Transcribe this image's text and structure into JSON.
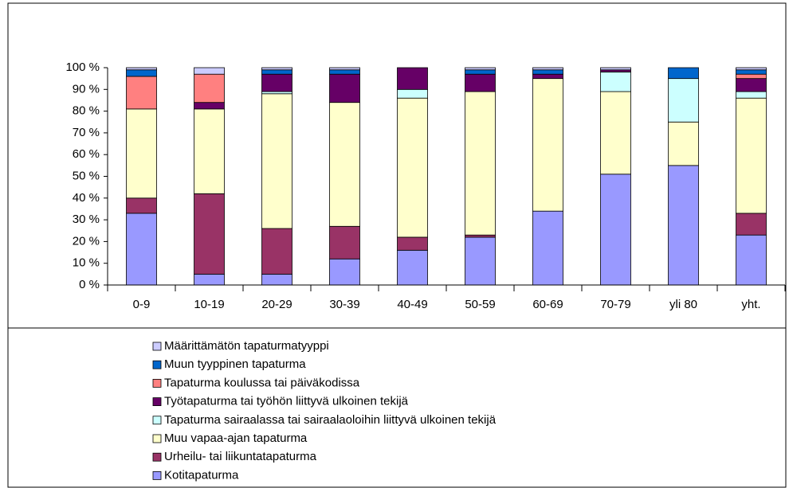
{
  "chart_data": {
    "type": "stacked_bar",
    "categories": [
      "0-9",
      "10-19",
      "20-29",
      "30-39",
      "40-49",
      "50-59",
      "60-69",
      "70-79",
      "yli 80",
      "yht."
    ],
    "series": [
      {
        "name": "Kotitapaturma",
        "color": "#9999ff",
        "values": [
          33,
          5,
          5,
          12,
          16,
          22,
          34,
          51,
          55,
          23
        ]
      },
      {
        "name": "Urheilu- tai liikuntatapaturma",
        "color": "#993366",
        "values": [
          7,
          37,
          21,
          15,
          6,
          1,
          0,
          0,
          0,
          10
        ]
      },
      {
        "name": "Muu vapaa-ajan tapaturma",
        "color": "#ffffcc",
        "values": [
          41,
          39,
          62,
          57,
          64,
          66,
          61,
          38,
          20,
          53
        ]
      },
      {
        "name": "Tapaturma sairaalassa tai sairaalaoloihin liittyvä ulkoinen tekijä",
        "color": "#ccffff",
        "values": [
          0,
          0,
          1,
          0,
          4,
          0,
          0,
          9,
          20,
          3
        ]
      },
      {
        "name": "Työtapaturma tai työhön liittyvä ulkoinen tekijä",
        "color": "#660066",
        "values": [
          0,
          3,
          8,
          13,
          10,
          8,
          2,
          1,
          0,
          6
        ]
      },
      {
        "name": "Tapaturma koulussa tai päiväkodissa",
        "color": "#ff8080",
        "values": [
          15,
          13,
          0,
          0,
          0,
          0,
          0,
          0,
          0,
          2
        ]
      },
      {
        "name": "Muun tyyppinen tapaturma",
        "color": "#0066cc",
        "values": [
          3,
          0,
          2,
          2,
          0,
          2,
          2,
          0,
          5,
          2
        ]
      },
      {
        "name": "Määrittämätön tapaturmatyyppi",
        "color": "#ccccff",
        "values": [
          1,
          3,
          1,
          1,
          0,
          1,
          1,
          1,
          0,
          1
        ]
      }
    ],
    "ylim": [
      0,
      100
    ],
    "yticks": [
      {
        "value": 0,
        "label": "0 %"
      },
      {
        "value": 10,
        "label": "10 %"
      },
      {
        "value": 20,
        "label": "20 %"
      },
      {
        "value": 30,
        "label": "30 %"
      },
      {
        "value": 40,
        "label": "40 %"
      },
      {
        "value": 50,
        "label": "50 %"
      },
      {
        "value": 60,
        "label": "60 %"
      },
      {
        "value": 70,
        "label": "70 %"
      },
      {
        "value": 80,
        "label": "80 %"
      },
      {
        "value": 90,
        "label": "90 %"
      },
      {
        "value": 100,
        "label": "100 %"
      }
    ],
    "legend": "bottom"
  }
}
